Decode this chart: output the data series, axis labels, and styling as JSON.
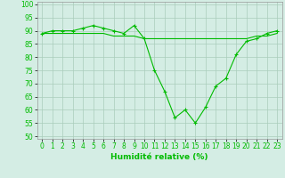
{
  "series1_x": [
    0,
    1,
    2,
    3,
    4,
    5,
    6,
    7,
    8,
    9,
    10,
    11,
    12,
    13,
    14,
    15,
    16,
    17,
    18,
    19,
    20,
    21,
    22,
    23
  ],
  "series1_y": [
    89,
    89,
    89,
    89,
    89,
    89,
    89,
    88,
    88,
    88,
    87,
    87,
    87,
    87,
    87,
    87,
    87,
    87,
    87,
    87,
    87,
    88,
    88,
    89
  ],
  "series2_x": [
    0,
    1,
    2,
    3,
    4,
    5,
    6,
    7,
    8,
    9,
    10,
    11,
    12,
    13,
    14,
    15,
    16,
    17,
    18,
    19,
    20,
    21,
    22,
    23
  ],
  "series2_y": [
    89,
    90,
    90,
    90,
    91,
    92,
    91,
    90,
    89,
    92,
    87,
    75,
    67,
    57,
    60,
    55,
    61,
    69,
    72,
    81,
    86,
    87,
    89,
    90
  ],
  "line_color": "#00bb00",
  "bg_color": "#d4ede4",
  "grid_color": "#aaccbb",
  "xlim": [
    -0.5,
    23.5
  ],
  "ylim": [
    49,
    101
  ],
  "yticks": [
    50,
    55,
    60,
    65,
    70,
    75,
    80,
    85,
    90,
    95,
    100
  ],
  "xticks": [
    0,
    1,
    2,
    3,
    4,
    5,
    6,
    7,
    8,
    9,
    10,
    11,
    12,
    13,
    14,
    15,
    16,
    17,
    18,
    19,
    20,
    21,
    22,
    23
  ],
  "xlabel": "Humidité relative (%)",
  "axis_fontsize": 6.5,
  "tick_fontsize": 5.5
}
